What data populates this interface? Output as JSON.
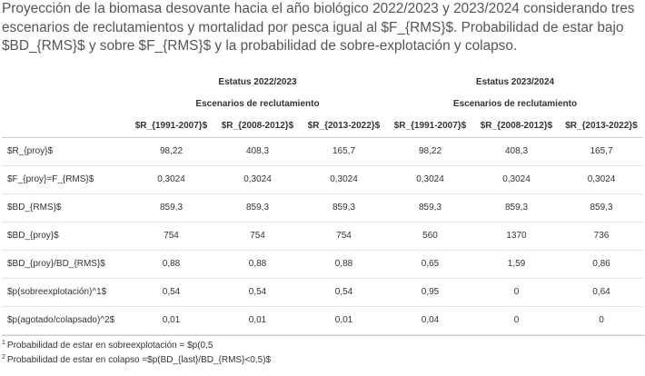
{
  "caption": "Proyección de la biomasa desovante hacia el año biológico 2022/2023 y 2023/2024 considerando tres escenarios de reclutamientos y mortalidad por pesca igual al $F_{RMS}$. Probabilidad de estar bajo $BD_{RMS}$ y sobre $F_{RMS}$ y la probabilidad de sobre-explotación y colapso.",
  "table": {
    "groups": [
      "Estatus 2022/2023",
      "Estatus 2023/2024"
    ],
    "subgroup": "Escenarios de reclutamiento",
    "columns": [
      "$R_{1991-2007}$",
      "$R_{2008-2012}$",
      "$R_{2013-2022}$",
      "$R_{1991-2007}$",
      "$R_{2008-2012}$",
      "$R_{2013-2022}$"
    ],
    "rows": [
      {
        "label": "$R_{proy}$",
        "values": [
          "98,22",
          "408,3",
          "165,7",
          "98,22",
          "408,3",
          "165,7"
        ]
      },
      {
        "label": "$F_{proy}=F_{RMS}$",
        "values": [
          "0,3024",
          "0,3024",
          "0,3024",
          "0,3024",
          "0,3024",
          "0,3024"
        ]
      },
      {
        "label": "$BD_{RMS}$",
        "values": [
          "859,3",
          "859,3",
          "859,3",
          "859,3",
          "859,3",
          "859,3"
        ]
      },
      {
        "label": "$BD_{proy}$",
        "values": [
          "754",
          "754",
          "754",
          "560",
          "1370",
          "736"
        ]
      },
      {
        "label": "$BD_{proy}/BD_{RMS}$",
        "values": [
          "0,88",
          "0,88",
          "0,88",
          "0,65",
          "1,59",
          "0,86"
        ]
      },
      {
        "label": "$p(sobreexplotación)^1$",
        "values": [
          "0,54",
          "0,54",
          "0,54",
          "0,95",
          "0",
          "0,64"
        ]
      },
      {
        "label": "$p(agotado/colapsado)^2$",
        "values": [
          "0,01",
          "0,01",
          "0,01",
          "0,04",
          "0",
          "0"
        ]
      }
    ]
  },
  "footnotes": [
    {
      "mark": "1",
      "text": "Probabilidad de estar en sobreexplotación = $p(0,5"
    },
    {
      "mark": "2",
      "text": "Probabilidad de estar en colapso =$p(BD_{last}/BD_{RMS}<0,5)$"
    }
  ]
}
